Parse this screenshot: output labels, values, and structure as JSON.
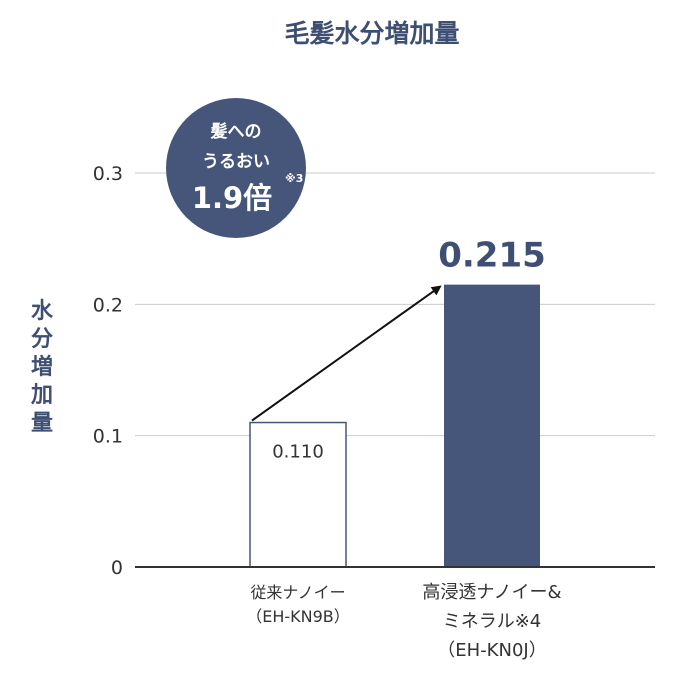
{
  "chart_data": {
    "type": "bar",
    "title": "毛髪水分増加量",
    "ylabel": "水分増加量",
    "ylim": [
      0,
      0.3
    ],
    "yticks": [
      "0",
      "0.1",
      "0.2",
      "0.3"
    ],
    "grid": true,
    "categories": [
      [
        "従来ナノイー",
        "（EH-KN9B）"
      ],
      [
        "高浸透ナノイー&",
        "ミネラル※4",
        "（EH-KN0J）"
      ]
    ],
    "values": [
      0.11,
      0.215
    ],
    "value_labels": [
      "0.110",
      "0.215"
    ],
    "bar_styles": [
      "outline",
      "filled"
    ],
    "colors": {
      "accent": "#46567a",
      "grid": "#cccccc",
      "axis": "#333333"
    },
    "callout": {
      "line1": "髪への",
      "line2": "うるおい",
      "line3": "1.9倍",
      "note": "※3"
    }
  }
}
